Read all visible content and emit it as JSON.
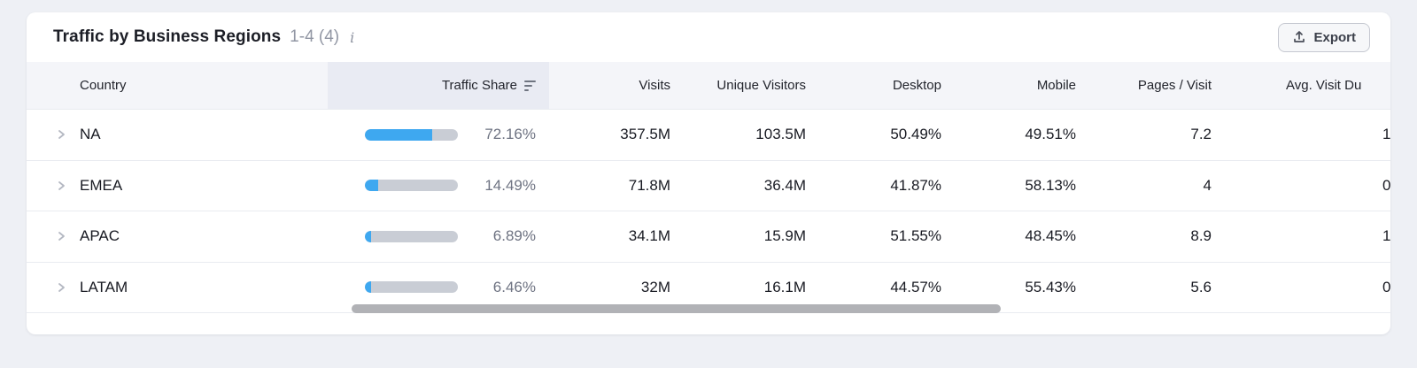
{
  "card": {
    "title": "Traffic by Business Regions",
    "range": "1-4 (4)",
    "info_icon": "i",
    "export_label": "Export"
  },
  "table": {
    "sorted_column": "Traffic Share",
    "columns": {
      "country": "Country",
      "traffic_share": "Traffic Share",
      "visits": "Visits",
      "unique_visitors": "Unique Visitors",
      "desktop": "Desktop",
      "mobile": "Mobile",
      "pages_per_visit": "Pages / Visit",
      "avg_visit_duration": "Avg. Visit Du"
    },
    "rows": [
      {
        "country": "NA",
        "traffic_share_pct": "72.16%",
        "traffic_share_value": 72.16,
        "visits": "357.5M",
        "unique_visitors": "103.5M",
        "desktop": "50.49%",
        "mobile": "49.51%",
        "pages_per_visit": "7.2",
        "avg_visit_duration_partial": "1"
      },
      {
        "country": "EMEA",
        "traffic_share_pct": "14.49%",
        "traffic_share_value": 14.49,
        "visits": "71.8M",
        "unique_visitors": "36.4M",
        "desktop": "41.87%",
        "mobile": "58.13%",
        "pages_per_visit": "4",
        "avg_visit_duration_partial": "0"
      },
      {
        "country": "APAC",
        "traffic_share_pct": "6.89%",
        "traffic_share_value": 6.89,
        "visits": "34.1M",
        "unique_visitors": "15.9M",
        "desktop": "51.55%",
        "mobile": "48.45%",
        "pages_per_visit": "8.9",
        "avg_visit_duration_partial": "1"
      },
      {
        "country": "LATAM",
        "traffic_share_pct": "6.46%",
        "traffic_share_value": 6.46,
        "visits": "32M",
        "unique_visitors": "16.1M",
        "desktop": "44.57%",
        "mobile": "55.43%",
        "pages_per_visit": "5.6",
        "avg_visit_duration_partial": "0"
      }
    ]
  },
  "colors": {
    "page_background": "#eef0f5",
    "bar_fill": "#3ea8f0",
    "bar_track": "#c9cdd5",
    "sorted_header_background": "#e9ebf3",
    "scrollbar_thumb": "#b1b2b6"
  }
}
